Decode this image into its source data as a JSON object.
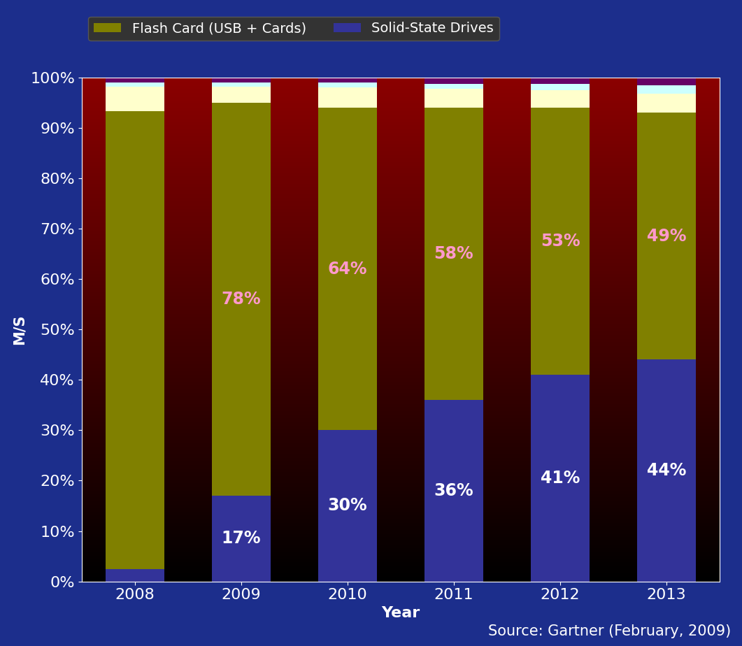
{
  "chart_data": {
    "type": "bar",
    "stacked": true,
    "data_labels": true,
    "grid": false,
    "legend": "upper left",
    "x_label": "Year",
    "y_label": "M/S",
    "source": "Source: Gartner (February, 2009)",
    "categories": [
      "2008",
      "2009",
      "2010",
      "2011",
      "2012",
      "2013"
    ],
    "series": [
      {
        "name": "Solid-State Drives",
        "color": "#333399",
        "values": [
          2.5,
          17,
          30,
          36,
          41,
          44
        ],
        "value_labels": [
          null,
          "17%",
          "30%",
          "36%",
          "41%",
          "44%"
        ]
      },
      {
        "name": "Flash Card (USB + Cards)",
        "color": "#808000",
        "values": [
          90.8,
          78,
          64,
          58,
          53,
          49
        ],
        "value_labels": [
          null,
          "78%",
          "64%",
          "58%",
          "53%",
          "49%"
        ]
      },
      {
        "color": "#FFFFCC",
        "values": [
          4.9,
          3.2,
          4.0,
          3.8,
          3.5,
          3.8
        ]
      },
      {
        "color": "#CCFFFF",
        "values": [
          0.8,
          0.8,
          1.0,
          1.0,
          1.3,
          1.7
        ]
      },
      {
        "color": "#660066",
        "values": [
          1.0,
          1.0,
          1.0,
          1.2,
          1.2,
          1.5
        ]
      }
    ],
    "ylim": [
      0,
      100
    ],
    "yticks": [
      {
        "value": 0,
        "label": "0%"
      },
      {
        "value": 10,
        "label": "10%"
      },
      {
        "value": 20,
        "label": "20%"
      },
      {
        "value": 30,
        "label": "30%"
      },
      {
        "value": 40,
        "label": "40%"
      },
      {
        "value": 50,
        "label": "50%"
      },
      {
        "value": 60,
        "label": "60%"
      },
      {
        "value": 70,
        "label": "70%"
      },
      {
        "value": 80,
        "label": "80%"
      },
      {
        "value": 90,
        "label": "90%"
      },
      {
        "value": 100,
        "label": "100%"
      }
    ]
  }
}
